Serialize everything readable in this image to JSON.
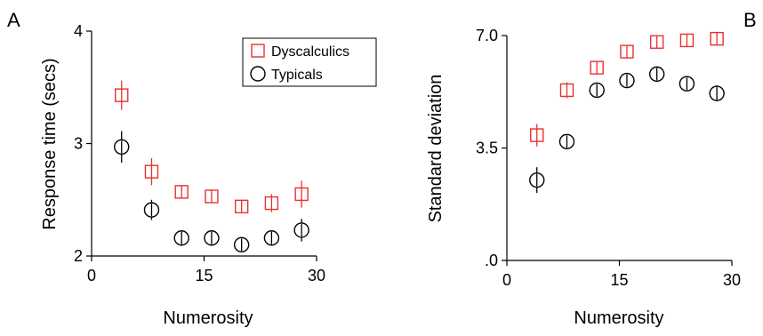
{
  "colors": {
    "dyscalculics": "#e8312f",
    "typicals": "#000000",
    "axis": "#000000"
  },
  "chart_data": [
    {
      "type": "scatter",
      "panel_label": "A",
      "xlabel": "Numerosity",
      "ylabel": "Response time (secs)",
      "xlim": [
        0,
        30
      ],
      "ylim": [
        2,
        4
      ],
      "xticks": [
        0,
        15,
        30
      ],
      "xtick_labels": [
        "0",
        "15",
        "30"
      ],
      "yticks": [
        2,
        3,
        4
      ],
      "ytick_labels": [
        "2",
        "3",
        "4"
      ],
      "grid": false,
      "legend": "top-right",
      "x": [
        4,
        8,
        12,
        16,
        20,
        24,
        28
      ],
      "series": [
        {
          "name": "Dyscalculics",
          "marker": "square",
          "color": "#e8312f",
          "values": [
            3.43,
            2.75,
            2.57,
            2.53,
            2.44,
            2.47,
            2.55
          ],
          "errors": [
            0.13,
            0.12,
            0.05,
            0.06,
            0.06,
            0.08,
            0.12
          ]
        },
        {
          "name": "Typicals",
          "marker": "circle",
          "color": "#000000",
          "values": [
            2.97,
            2.41,
            2.16,
            2.16,
            2.1,
            2.16,
            2.23
          ],
          "errors": [
            0.14,
            0.09,
            0.04,
            0.04,
            0.05,
            0.05,
            0.1
          ]
        }
      ]
    },
    {
      "type": "scatter",
      "panel_label": "B",
      "xlabel": "Numerosity",
      "ylabel": "Standard deviation",
      "xlim": [
        0,
        30
      ],
      "ylim": [
        0,
        7
      ],
      "xticks": [
        0,
        15,
        30
      ],
      "xtick_labels": [
        "0",
        "15",
        "30"
      ],
      "yticks": [
        0,
        3.5,
        7
      ],
      "ytick_labels": [
        ".0",
        "3.5",
        "7.0"
      ],
      "grid": false,
      "x": [
        4,
        8,
        12,
        16,
        20,
        24,
        28
      ],
      "series": [
        {
          "name": "Dyscalculics",
          "marker": "square",
          "color": "#e8312f",
          "values": [
            3.9,
            5.3,
            6.0,
            6.5,
            6.8,
            6.85,
            6.9
          ],
          "errors": [
            0.35,
            0.25,
            0.2,
            0.2,
            0.15,
            0.15,
            0.2
          ]
        },
        {
          "name": "Typicals",
          "marker": "circle",
          "color": "#000000",
          "values": [
            2.5,
            3.7,
            5.3,
            5.6,
            5.8,
            5.5,
            5.2
          ],
          "errors": [
            0.4,
            0.15,
            0.2,
            0.2,
            0.15,
            0.2,
            0.25
          ]
        }
      ]
    }
  ]
}
